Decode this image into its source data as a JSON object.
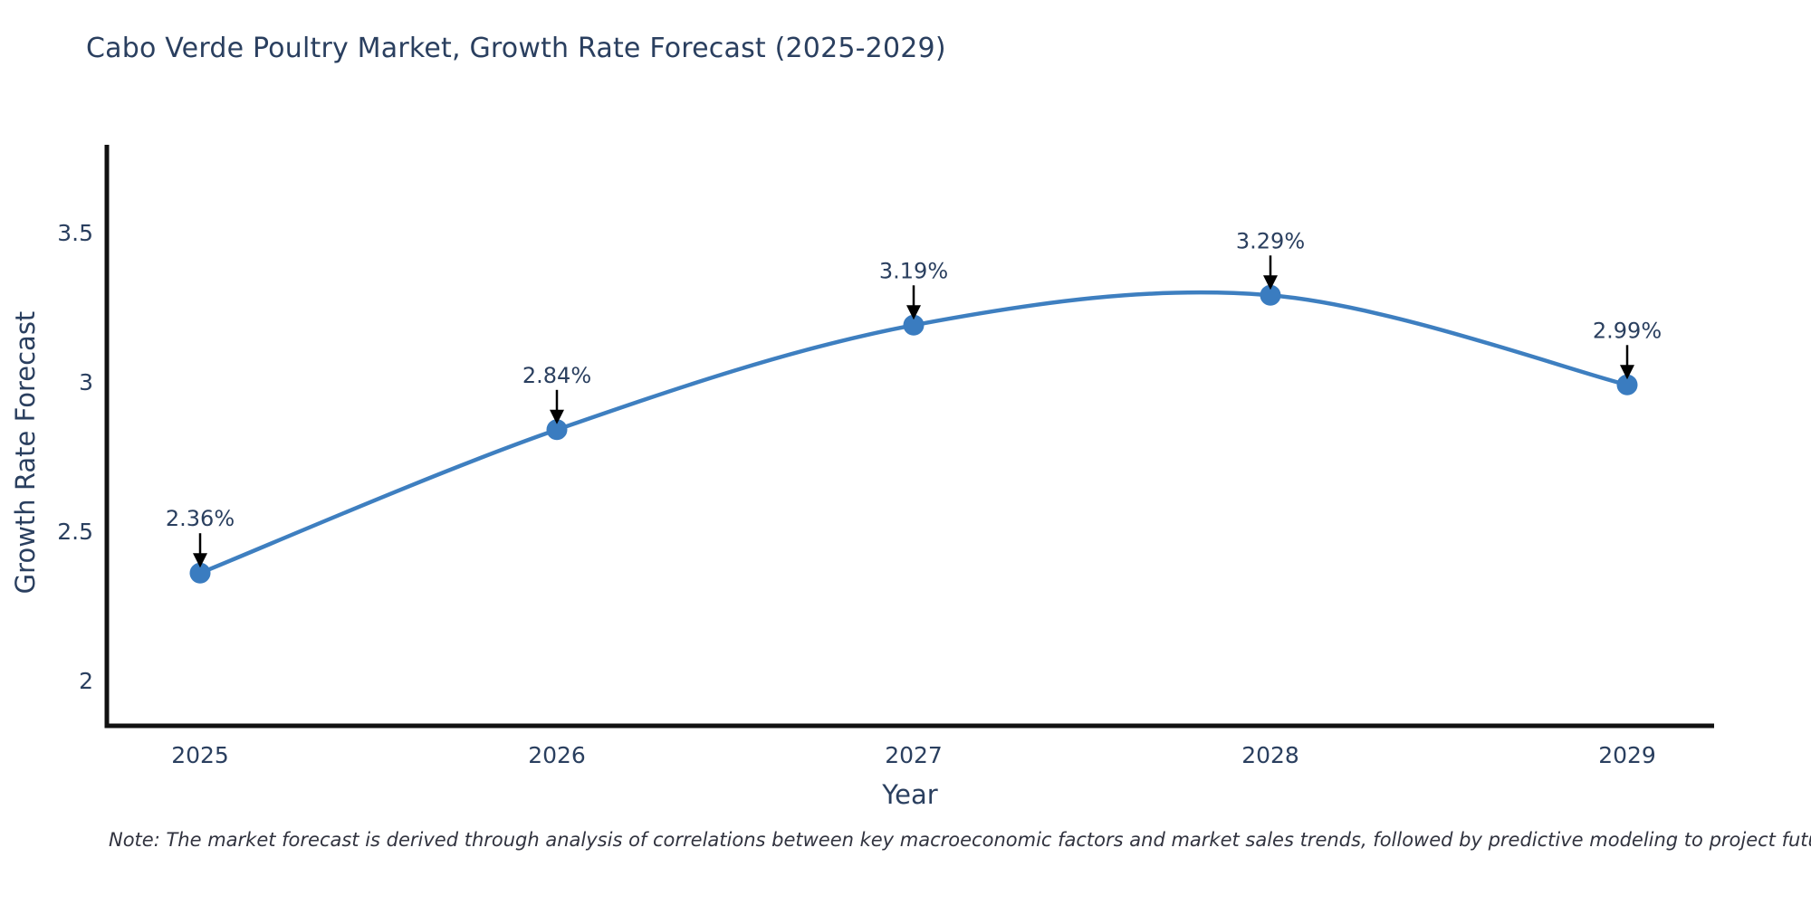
{
  "title": "Cabo Verde Poultry Market, Growth Rate Forecast (2025-2029)",
  "note": "Note: The market forecast is derived through analysis of correlations between key macroeconomic factors and market sales trends, followed by predictive modeling to project future sales",
  "colors": {
    "line": "#3e7fc0",
    "marker": "#3a7cc0",
    "axis": "#111111",
    "text": "#2a3f5f",
    "annotation_arrow": "#000000"
  },
  "chart_data": {
    "type": "line",
    "title": "Cabo Verde Poultry Market, Growth Rate Forecast (2025-2029)",
    "x": [
      "2025",
      "2026",
      "2027",
      "2028",
      "2029"
    ],
    "series": [
      {
        "name": "Growth Rate Forecast",
        "values": [
          2.36,
          2.84,
          3.19,
          3.29,
          2.99
        ]
      }
    ],
    "point_labels": [
      "2.36%",
      "2.84%",
      "3.19%",
      "3.29%",
      "2.99%"
    ],
    "xlabel": "Year",
    "ylabel": "Growth Rate Forecast",
    "yticks": [
      2,
      2.5,
      3,
      3.5
    ],
    "ylim": [
      1.85,
      3.79
    ],
    "grid": false,
    "legend": false,
    "line_shape": "spline",
    "markers": true,
    "annotations": "value labels with down arrows above each point"
  }
}
